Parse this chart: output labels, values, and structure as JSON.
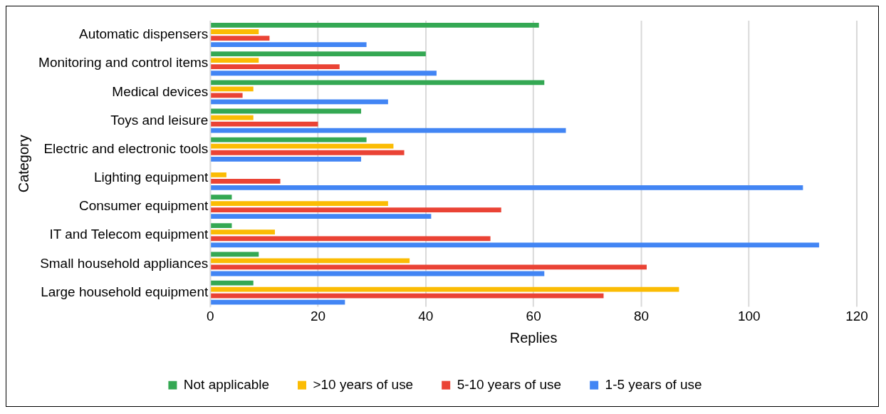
{
  "chart_data": {
    "type": "bar",
    "orientation": "horizontal",
    "xlabel": "Replies",
    "ylabel": "Category",
    "categories": [
      "Automatic dispensers",
      "Monitoring and control items",
      "Medical devices",
      "Toys and leisure",
      "Electric and electronic tools",
      "Lighting equipment",
      "Consumer equipment",
      "IT and Telecom equipment",
      "Small household appliances",
      "Large household equipment"
    ],
    "series": [
      {
        "name": "Not applicable",
        "color": "#34a853",
        "values": [
          61,
          40,
          62,
          28,
          29,
          0,
          4,
          4,
          9,
          8
        ]
      },
      {
        "name": ">10 years of use",
        "color": "#fbbc04",
        "values": [
          9,
          9,
          8,
          8,
          34,
          3,
          33,
          12,
          37,
          87
        ]
      },
      {
        "name": "5-10 years of use",
        "color": "#ea4335",
        "values": [
          11,
          24,
          6,
          20,
          36,
          13,
          54,
          52,
          81,
          73
        ]
      },
      {
        "name": "1-5 years of use",
        "color": "#4285f4",
        "values": [
          29,
          42,
          33,
          66,
          28,
          110,
          41,
          113,
          62,
          25
        ]
      }
    ],
    "xlim": [
      0,
      120
    ],
    "xticks": [
      0,
      20,
      40,
      60,
      80,
      100,
      120
    ],
    "grid": "x",
    "legend": "bottom"
  }
}
